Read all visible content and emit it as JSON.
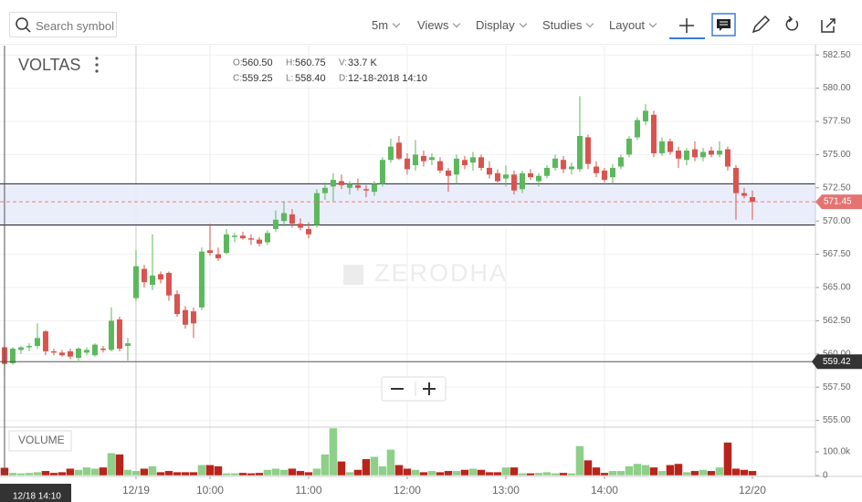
{
  "toolbar": {
    "search_placeholder": "Search symbol",
    "interval": "5m",
    "menus": [
      "Views",
      "Display",
      "Studies",
      "Layout"
    ]
  },
  "chart_data": {
    "type": "candlestick",
    "symbol": "VOLTAS",
    "watermark": "ZERODHA",
    "volume_label": "VOLUME",
    "header": [
      {
        "key": "O:",
        "text": "560.50"
      },
      {
        "key": "H:",
        "text": "560.75"
      },
      {
        "key": "V:",
        "text": "33.7 K"
      },
      {
        "key": "C:",
        "text": "559.25"
      },
      {
        "key": "L:",
        "text": "558.40"
      },
      {
        "key": "D:",
        "text": "12-18-2018 14:10"
      }
    ],
    "up_color": "#5cb85c",
    "down_color": "#d9534f",
    "volume_up_color": "#8fcf8a",
    "volume_down_color": "#b8241c",
    "x": [
      0,
      1,
      2,
      3,
      4,
      5,
      6,
      7,
      8,
      9,
      10,
      11,
      12,
      13,
      14,
      15,
      16,
      17,
      18,
      19,
      20,
      21,
      22,
      23,
      24,
      25,
      26,
      27,
      28,
      29,
      30,
      31,
      32,
      33,
      34,
      35,
      36,
      37,
      38,
      39,
      40,
      41,
      42,
      43,
      44,
      45,
      46,
      47,
      48,
      49,
      50,
      51,
      52,
      53,
      54,
      55,
      56,
      57,
      58,
      59,
      60,
      61,
      62,
      63,
      64,
      65,
      66,
      67,
      68,
      69,
      70,
      71,
      72,
      73,
      74,
      75,
      76,
      77,
      78,
      79,
      80,
      81,
      82,
      83,
      84,
      85,
      86,
      87,
      88,
      89,
      90,
      91
    ],
    "open": [
      560.5,
      559.3,
      560.3,
      560.5,
      560.6,
      561.7,
      560.2,
      560.1,
      560.2,
      559.7,
      560.1,
      559.9,
      560.4,
      560.3,
      562.6,
      560.6,
      564.2,
      566.4,
      565.2,
      566.0,
      566.1,
      564.5,
      563.3,
      563.2,
      563.5,
      567.8,
      567.5,
      567.6,
      568.8,
      568.9,
      568.7,
      568.6,
      568.4,
      569.4,
      570.0,
      570.5,
      569.8,
      569.4,
      569.7,
      572.1,
      572.6,
      573.0,
      572.5,
      572.7,
      572.4,
      572.2,
      572.8,
      574.6,
      575.9,
      574.7,
      574.2,
      574.9,
      574.6,
      574.5,
      573.8,
      573.5,
      574.6,
      574.4,
      574.8,
      574.0,
      573.6,
      573.2,
      573.5,
      572.4,
      573.6,
      573.0,
      573.4,
      574.0,
      574.6,
      573.9,
      573.9,
      576.3,
      574.1,
      573.8,
      573.3,
      574.1,
      575.0,
      576.3,
      577.5,
      578.0,
      575.1,
      576.0,
      575.3,
      574.6,
      575.4,
      574.8,
      575.3,
      575.0,
      575.4,
      574.0,
      572.1,
      571.8
    ],
    "high": [
      560.75,
      560.5,
      560.6,
      560.8,
      562.3,
      561.8,
      560.4,
      560.3,
      560.4,
      560.5,
      560.5,
      560.8,
      560.6,
      563.5,
      562.8,
      561.2,
      567.8,
      566.7,
      569.0,
      566.2,
      566.2,
      564.8,
      563.6,
      563.5,
      568.0,
      569.8,
      568.0,
      569.4,
      569.1,
      569.2,
      569.0,
      568.8,
      569.3,
      570.8,
      571.5,
      570.9,
      570.2,
      569.9,
      572.4,
      572.9,
      573.6,
      573.5,
      573.0,
      573.2,
      572.7,
      573.0,
      574.8,
      576.2,
      576.4,
      575.1,
      576.1,
      575.3,
      575.1,
      574.8,
      574.0,
      575.0,
      574.9,
      575.2,
      575.0,
      574.5,
      573.9,
      574.2,
      573.8,
      573.8,
      573.9,
      573.6,
      574.2,
      575.0,
      574.9,
      574.4,
      579.4,
      576.5,
      574.5,
      574.0,
      574.3,
      575.0,
      576.4,
      577.8,
      578.8,
      578.3,
      576.3,
      576.2,
      575.6,
      575.5,
      576.0,
      575.5,
      575.6,
      576.0,
      575.6,
      574.2,
      572.5,
      572.3
    ],
    "low": [
      558.4,
      559.2,
      560.0,
      560.2,
      560.4,
      559.9,
      559.9,
      559.8,
      559.6,
      559.5,
      559.9,
      559.8,
      560.1,
      560.2,
      560.2,
      559.5,
      564.0,
      565.0,
      564.8,
      565.3,
      564.0,
      562.8,
      561.9,
      561.2,
      563.3,
      567.4,
      567.0,
      567.5,
      568.4,
      568.6,
      568.2,
      568.1,
      568.2,
      569.2,
      569.6,
      569.5,
      569.3,
      568.7,
      569.5,
      571.6,
      571.5,
      572.4,
      572.0,
      572.3,
      571.8,
      571.9,
      572.6,
      574.4,
      574.6,
      573.5,
      573.8,
      574.1,
      574.2,
      573.6,
      572.2,
      572.8,
      573.9,
      573.8,
      573.8,
      573.2,
      572.9,
      572.6,
      572.0,
      572.1,
      573.1,
      572.6,
      573.2,
      573.8,
      573.6,
      573.5,
      573.7,
      573.9,
      573.3,
      572.9,
      572.8,
      573.9,
      574.8,
      576.1,
      577.2,
      574.8,
      574.9,
      575.0,
      574.0,
      574.2,
      574.5,
      574.5,
      574.8,
      574.8,
      573.8,
      570.1,
      571.7,
      570.1
    ],
    "close": [
      559.25,
      560.4,
      560.5,
      560.6,
      561.2,
      560.2,
      560.1,
      559.9,
      559.8,
      560.4,
      560.3,
      560.7,
      560.3,
      562.5,
      560.4,
      560.8,
      566.6,
      565.4,
      565.9,
      565.6,
      564.4,
      563.0,
      562.2,
      562.3,
      567.7,
      567.6,
      567.2,
      569.0,
      568.9,
      568.7,
      568.6,
      568.3,
      569.1,
      570.1,
      570.6,
      569.8,
      569.5,
      569.0,
      572.1,
      572.5,
      573.1,
      572.7,
      572.8,
      572.5,
      572.3,
      572.8,
      574.6,
      575.6,
      574.7,
      573.9,
      575.0,
      574.5,
      574.8,
      573.8,
      573.4,
      574.7,
      574.2,
      574.8,
      574.0,
      573.5,
      573.0,
      573.5,
      572.3,
      573.6,
      573.3,
      573.4,
      574.0,
      574.7,
      573.9,
      574.1,
      576.4,
      574.3,
      573.6,
      573.1,
      574.0,
      574.8,
      576.2,
      577.6,
      578.3,
      575.1,
      576.0,
      575.2,
      574.7,
      575.3,
      574.8,
      575.2,
      575.0,
      575.3,
      574.1,
      572.1,
      571.9,
      571.45
    ],
    "volume": [
      33700,
      12000,
      10000,
      12000,
      15000,
      20000,
      12000,
      15000,
      30000,
      25000,
      35000,
      30000,
      35000,
      95000,
      90000,
      25000,
      20000,
      30000,
      40000,
      15000,
      20000,
      15000,
      15000,
      15000,
      45000,
      45000,
      40000,
      10000,
      10000,
      12000,
      10000,
      12000,
      25000,
      30000,
      25000,
      30000,
      20000,
      15000,
      30000,
      90000,
      200000,
      60000,
      15000,
      25000,
      70000,
      80000,
      40000,
      110000,
      45000,
      30000,
      25000,
      15000,
      20000,
      15000,
      20000,
      20000,
      25000,
      30000,
      25000,
      15000,
      15000,
      35000,
      35000,
      10000,
      10000,
      12000,
      15000,
      10000,
      12000,
      10000,
      125000,
      65000,
      35000,
      12000,
      20000,
      20000,
      40000,
      50000,
      45000,
      35000,
      20000,
      45000,
      50000,
      15000,
      20000,
      25000,
      20000,
      35000,
      140000,
      30000,
      25000,
      20000
    ],
    "xlim": [
      -0.55,
      98.67
    ],
    "xticks": [
      {
        "value": 16,
        "label": "12/19"
      },
      {
        "value": 25,
        "label": "10:00"
      },
      {
        "value": 37,
        "label": "11:00"
      },
      {
        "value": 49,
        "label": "12:00"
      },
      {
        "value": 61,
        "label": "13:00"
      },
      {
        "value": 73,
        "label": "14:00"
      },
      {
        "value": 91,
        "label": "12/20"
      }
    ],
    "ylim": [
      554.49,
      583.2
    ],
    "yticks": [
      {
        "value": 555,
        "label": "555.00"
      },
      {
        "value": 557.5,
        "label": "557.50"
      },
      {
        "value": 560,
        "label": "560.00"
      },
      {
        "value": 562.5,
        "label": "562.50"
      },
      {
        "value": 565,
        "label": "565.00"
      },
      {
        "value": 567.5,
        "label": "567.50"
      },
      {
        "value": 570,
        "label": "570.00"
      },
      {
        "value": 572.5,
        "label": "572.50"
      },
      {
        "value": 575,
        "label": "575.00"
      },
      {
        "value": 577.5,
        "label": "577.50"
      },
      {
        "value": 580,
        "label": "580.00"
      },
      {
        "value": 582.5,
        "label": "582.50"
      }
    ],
    "volume_ylim": [
      0,
      211500
    ],
    "volume_yticks": [
      0,
      {
        "value": 100000,
        "label": "100.0k"
      }
    ],
    "band": {
      "lower": 569.7,
      "upper": 572.8
    },
    "last_price": 571.45,
    "crosshair": {
      "x": 0,
      "price": 559.42,
      "time_label": "12/18 14:10"
    }
  }
}
